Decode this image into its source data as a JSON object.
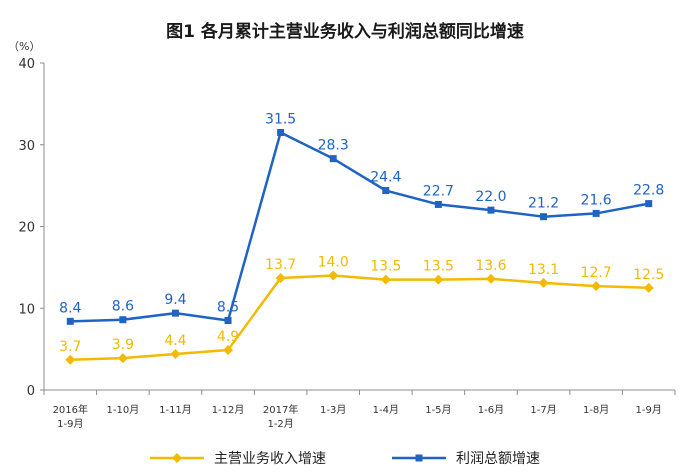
{
  "chart_data": {
    "type": "line",
    "title": "图1  各月累计主营业务收入与利润总额同比增速",
    "yunit": "（%）",
    "ylim": [
      0,
      40
    ],
    "yticks": [
      "0",
      "10",
      "20",
      "30",
      "40"
    ],
    "categories": [
      [
        "2016年",
        "1-9月"
      ],
      [
        "1-10月"
      ],
      [
        "1-11月"
      ],
      [
        "1-12月"
      ],
      [
        "2017年",
        "1-2月"
      ],
      [
        "1-3月"
      ],
      [
        "1-4月"
      ],
      [
        "1-5月"
      ],
      [
        "1-6月"
      ],
      [
        "1-7月"
      ],
      [
        "1-8月"
      ],
      [
        "1-9月"
      ]
    ],
    "grid": false,
    "legend_position": "bottom",
    "series": [
      {
        "name": "主营业务收入增速",
        "color": "#F2BA02",
        "marker": "diamond",
        "values": [
          3.7,
          3.9,
          4.4,
          4.9,
          13.7,
          14.0,
          13.5,
          13.5,
          13.6,
          13.1,
          12.7,
          12.5
        ],
        "labels": [
          "3.7",
          "3.9",
          "4.4",
          "4.9",
          "13.7",
          "14.0",
          "13.5",
          "13.5",
          "13.6",
          "13.1",
          "12.7",
          "12.5"
        ]
      },
      {
        "name": "利润总额增速",
        "color": "#1F64C4",
        "marker": "square",
        "values": [
          8.4,
          8.6,
          9.4,
          8.5,
          31.5,
          28.3,
          24.4,
          22.7,
          22.0,
          21.2,
          21.6,
          22.8
        ],
        "labels": [
          "8.4",
          "8.6",
          "9.4",
          "8.5",
          "31.5",
          "28.3",
          "24.4",
          "22.7",
          "22.0",
          "21.2",
          "21.6",
          "22.8"
        ]
      }
    ]
  }
}
